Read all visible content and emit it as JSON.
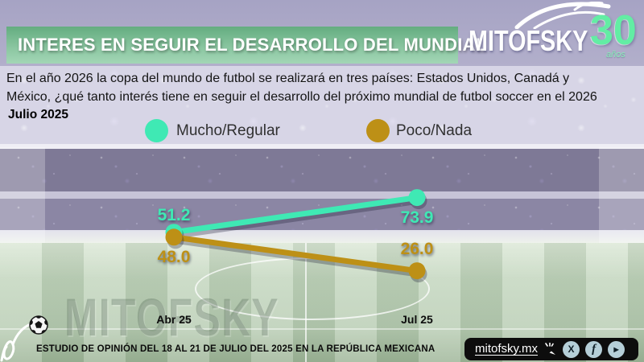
{
  "header": {
    "title": "INTERES EN SEGUIR EL DESARROLLO DEL MUNDIAL",
    "logo": {
      "brand": "MITOFSKY",
      "anniversary": "30",
      "anniversary_suffix": "años"
    }
  },
  "intro": {
    "line1": "En el año 2026 la copa del mundo de futbol se realizará en tres países:  Estados Unidos, Canadá y",
    "line2": "México, ¿qué tanto interés tiene en seguir el desarrollo del próximo mundial de futbol soccer en el 2026",
    "date_label": "Julio 2025"
  },
  "chart_data": {
    "type": "line",
    "categories": [
      "Abr 25",
      "Jul 25"
    ],
    "series": [
      {
        "name": "Mucho/Regular",
        "color": "#3fe9b4",
        "values": [
          51.2,
          73.9
        ]
      },
      {
        "name": "Poco/Nada",
        "color": "#bd9016",
        "values": [
          48.0,
          26.0
        ]
      }
    ],
    "title": "INTERES EN SEGUIR EL DESARROLLO DEL MUNDIAL",
    "xlabel": "",
    "ylabel": "",
    "ylim": [
      20,
      80
    ],
    "grid": false,
    "legend_position": "top",
    "value_labels": true,
    "value_format": "one-decimal"
  },
  "watermark": {
    "text": "MITOFSKY"
  },
  "footer": {
    "note": "ESTUDIO DE OPINIÓN DEL 18 AL 21 DE JULIO DEL 2025 EN LA REPÚBLICA MEXICANA",
    "site": "mitofsky.mx",
    "social": [
      {
        "name": "x",
        "glyph": "X"
      },
      {
        "name": "facebook",
        "glyph": "f"
      },
      {
        "name": "youtube",
        "glyph": "▶"
      }
    ]
  }
}
